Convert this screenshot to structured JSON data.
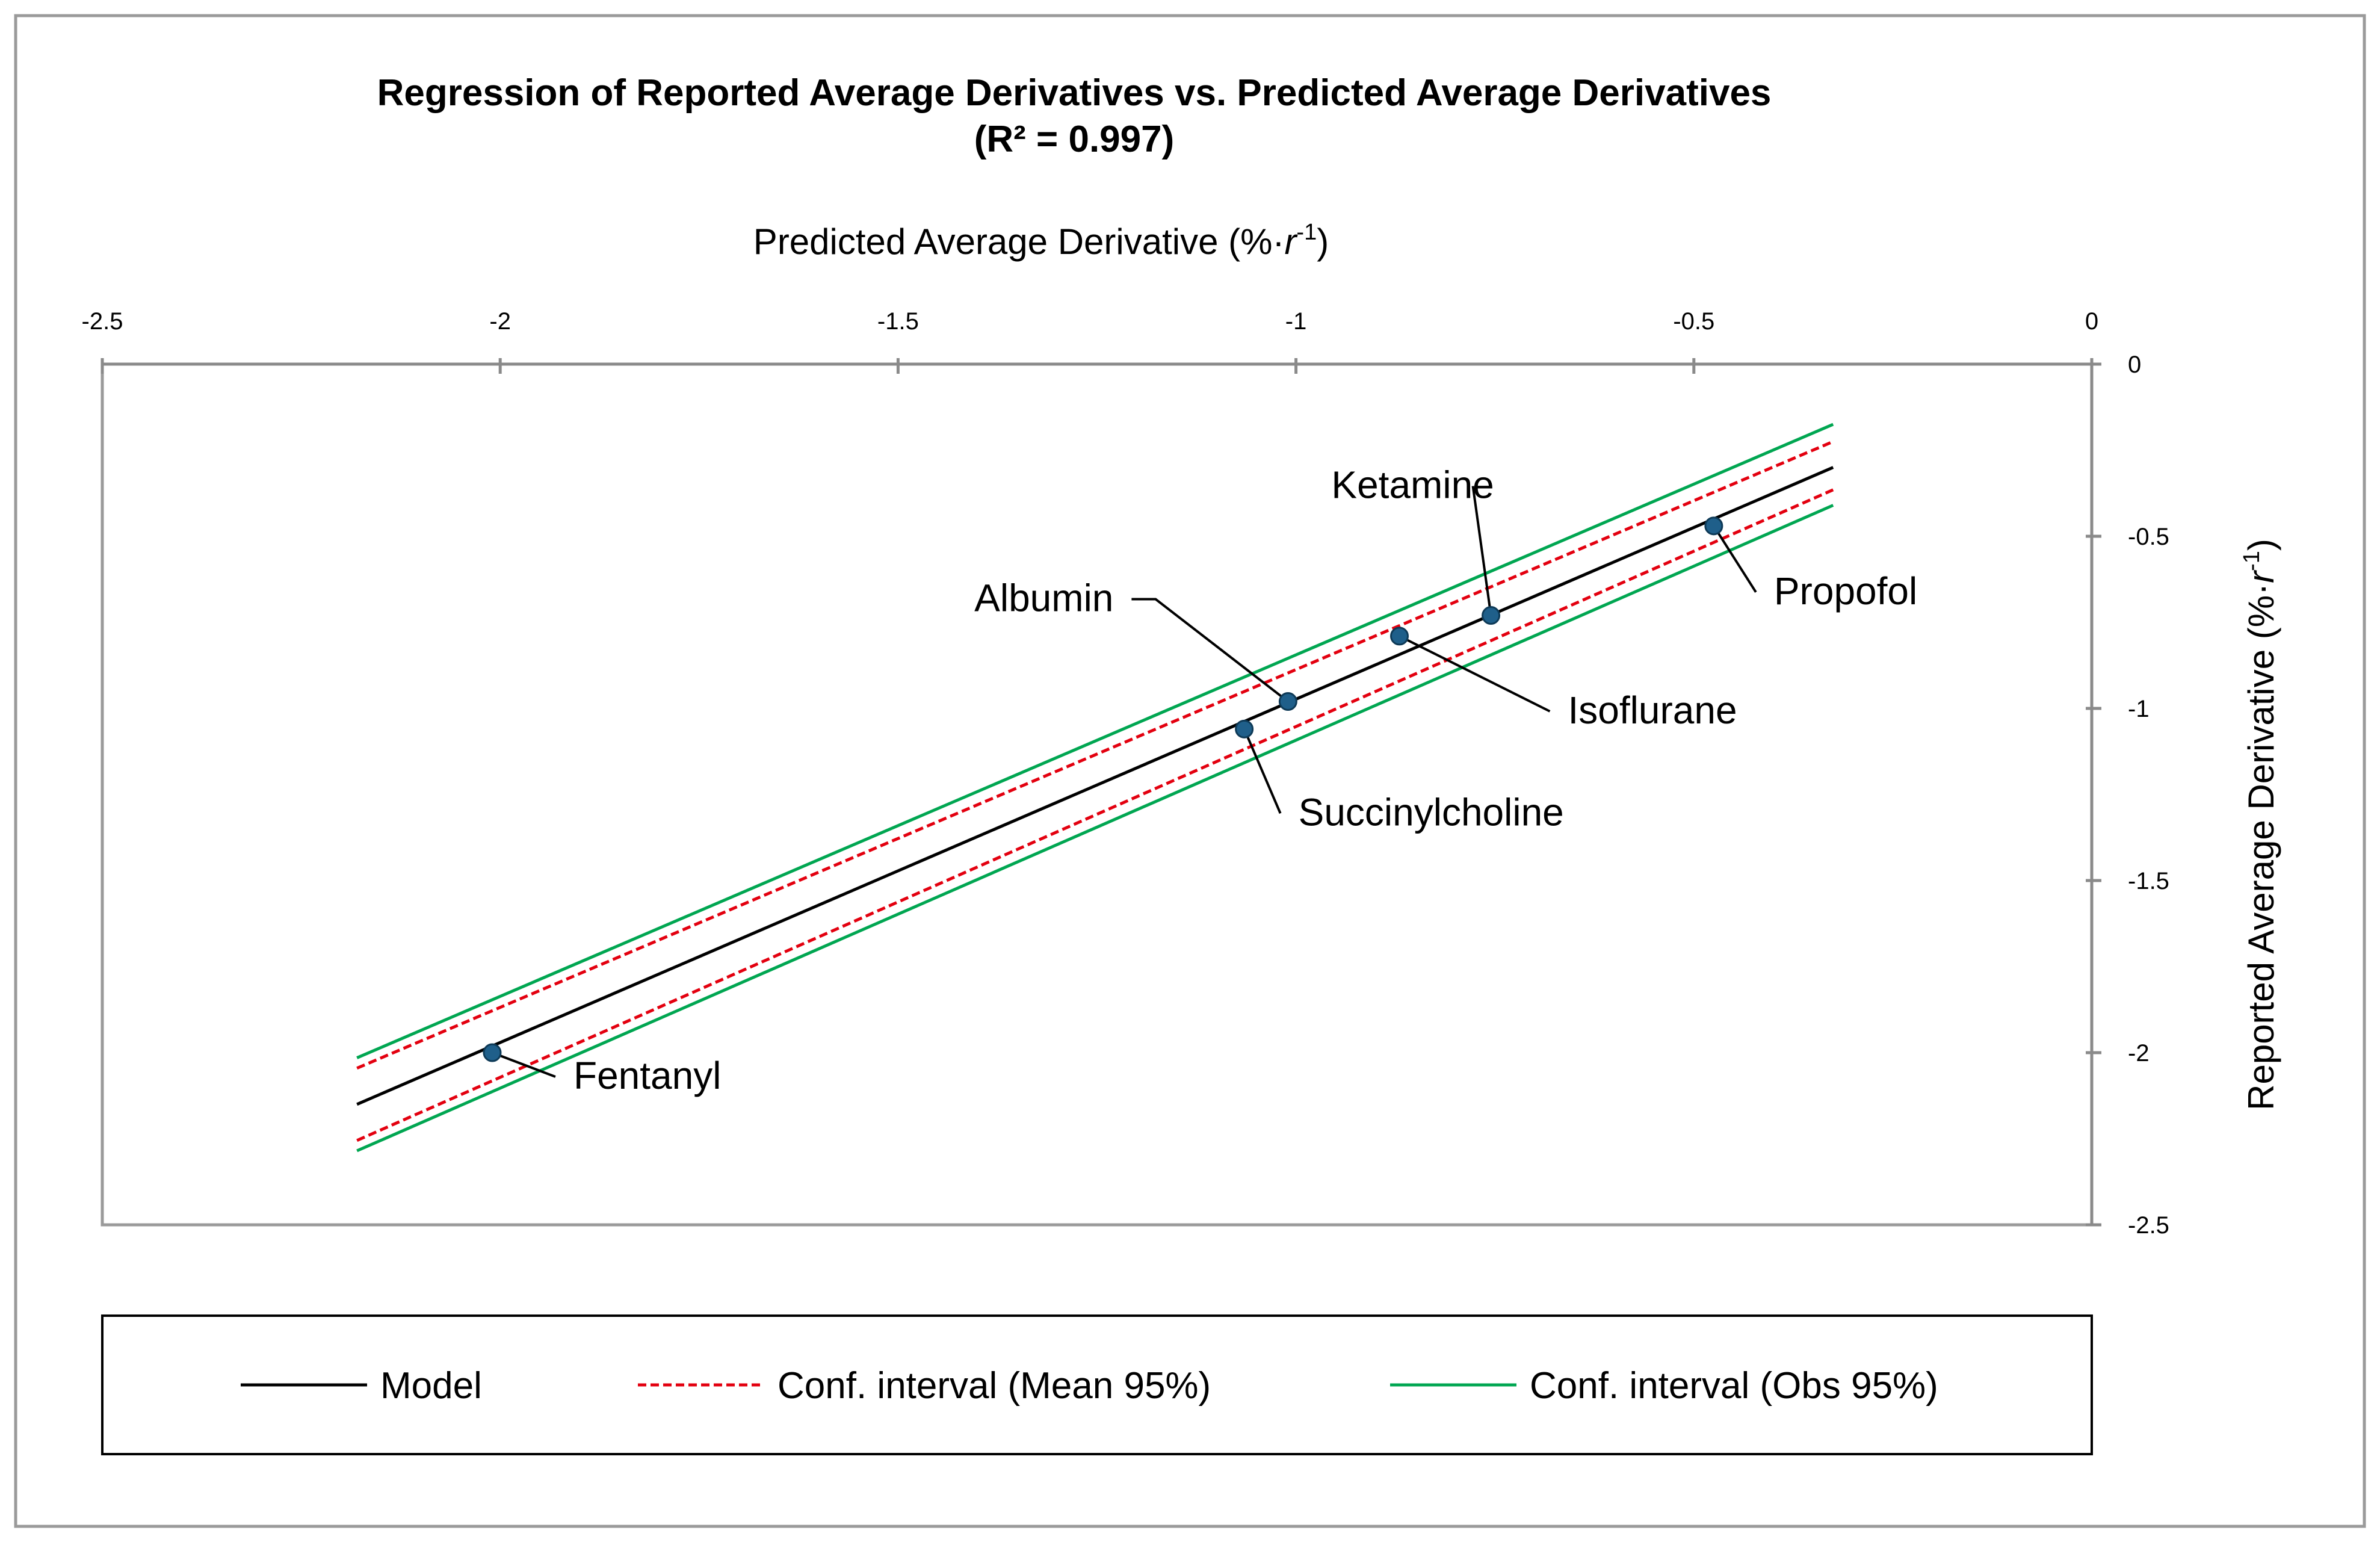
{
  "chart_data": {
    "type": "scatter",
    "title": "Regression of Reported Average Derivatives vs. Predicted Average Derivatives",
    "subtitle": "(R² = 0.997)",
    "xlabel": "Predicted Average Derivative (%·r⁻¹)",
    "xlabel_parts": {
      "pre": "Predicted Average Derivative (%·",
      "var": "r",
      "sup": "-1",
      "post": ")"
    },
    "ylabel": "Reported Average Derivative (%·r⁻¹)",
    "ylabel_parts": {
      "pre": "Reported Average Derivative (%·",
      "var": "r",
      "sup": "-1",
      "post": ")"
    },
    "xlim": [
      -2.5,
      0
    ],
    "ylim": [
      -2.5,
      0
    ],
    "x_ticks": [
      -2.5,
      -2,
      -1.5,
      -1,
      -0.5,
      0
    ],
    "x_tick_labels": [
      "-2.5",
      "-2",
      "-1.5",
      "-1",
      "-0.5",
      "0"
    ],
    "y_ticks": [
      0,
      -0.5,
      -1,
      -1.5,
      -2,
      -2.5
    ],
    "y_tick_labels": [
      "0",
      "-0.5",
      "-1",
      "-1.5",
      "-2",
      "-2.5"
    ],
    "x_axis_position": "top",
    "y_axis_position": "right",
    "grid": false,
    "legend_position": "bottom",
    "points": [
      {
        "label": "Fentanyl",
        "x": -2.01,
        "y": -2.0
      },
      {
        "label": "Succinylcholine",
        "x": -1.065,
        "y": -1.06
      },
      {
        "label": "Albumin",
        "x": -1.01,
        "y": -0.98
      },
      {
        "label": "Isoflurane",
        "x": -0.87,
        "y": -0.79
      },
      {
        "label": "Ketamine",
        "x": -0.755,
        "y": -0.73
      },
      {
        "label": "Propofol",
        "x": -0.475,
        "y": -0.47
      }
    ],
    "label_offsets": {
      "Fentanyl": {
        "anchor": "start",
        "dx": 135,
        "dy": 60
      },
      "Succinylcholine": {
        "anchor": "start",
        "dx": 90,
        "dy": 160
      },
      "Albumin": {
        "anchor": "end",
        "dx": -290,
        "dy": -150
      },
      "Isoflurane": {
        "anchor": "start",
        "dx": 280,
        "dy": 145
      },
      "Ketamine": {
        "anchor": "middle",
        "dx": -130,
        "dy": -195
      },
      "Propofol": {
        "anchor": "start",
        "dx": 100,
        "dy": 130
      }
    },
    "series": [
      {
        "name": "Model",
        "color": "#000000",
        "style": "solid",
        "x": [
          -2.18,
          -0.325
        ],
        "y": [
          -2.15,
          -0.3
        ]
      },
      {
        "name": "Conf. interval (Mean 95%)",
        "color": "#e3000f",
        "style": "dashed",
        "x": [
          -2.18,
          -0.325
        ],
        "y": [
          -2.045,
          -0.225
        ],
        "x2": [
          -2.18,
          -0.325
        ],
        "y2": [
          -2.255,
          -0.365
        ]
      },
      {
        "name": "Conf. interval (Obs 95%)",
        "color": "#00a651",
        "style": "solid",
        "x": [
          -2.18,
          -0.325
        ],
        "y": [
          -2.015,
          -0.175
        ],
        "x2": [
          -2.18,
          -0.325
        ],
        "y2": [
          -2.285,
          -0.41
        ]
      }
    ],
    "point_color": "#1f5f8a"
  },
  "legend": {
    "items": [
      {
        "label": "Model",
        "color": "#000000",
        "style": "solid"
      },
      {
        "label": "Conf. interval (Mean 95%)",
        "color": "#e3000f",
        "style": "dashed"
      },
      {
        "label": "Conf. interval (Obs 95%)",
        "color": "#00a651",
        "style": "solid"
      }
    ]
  }
}
